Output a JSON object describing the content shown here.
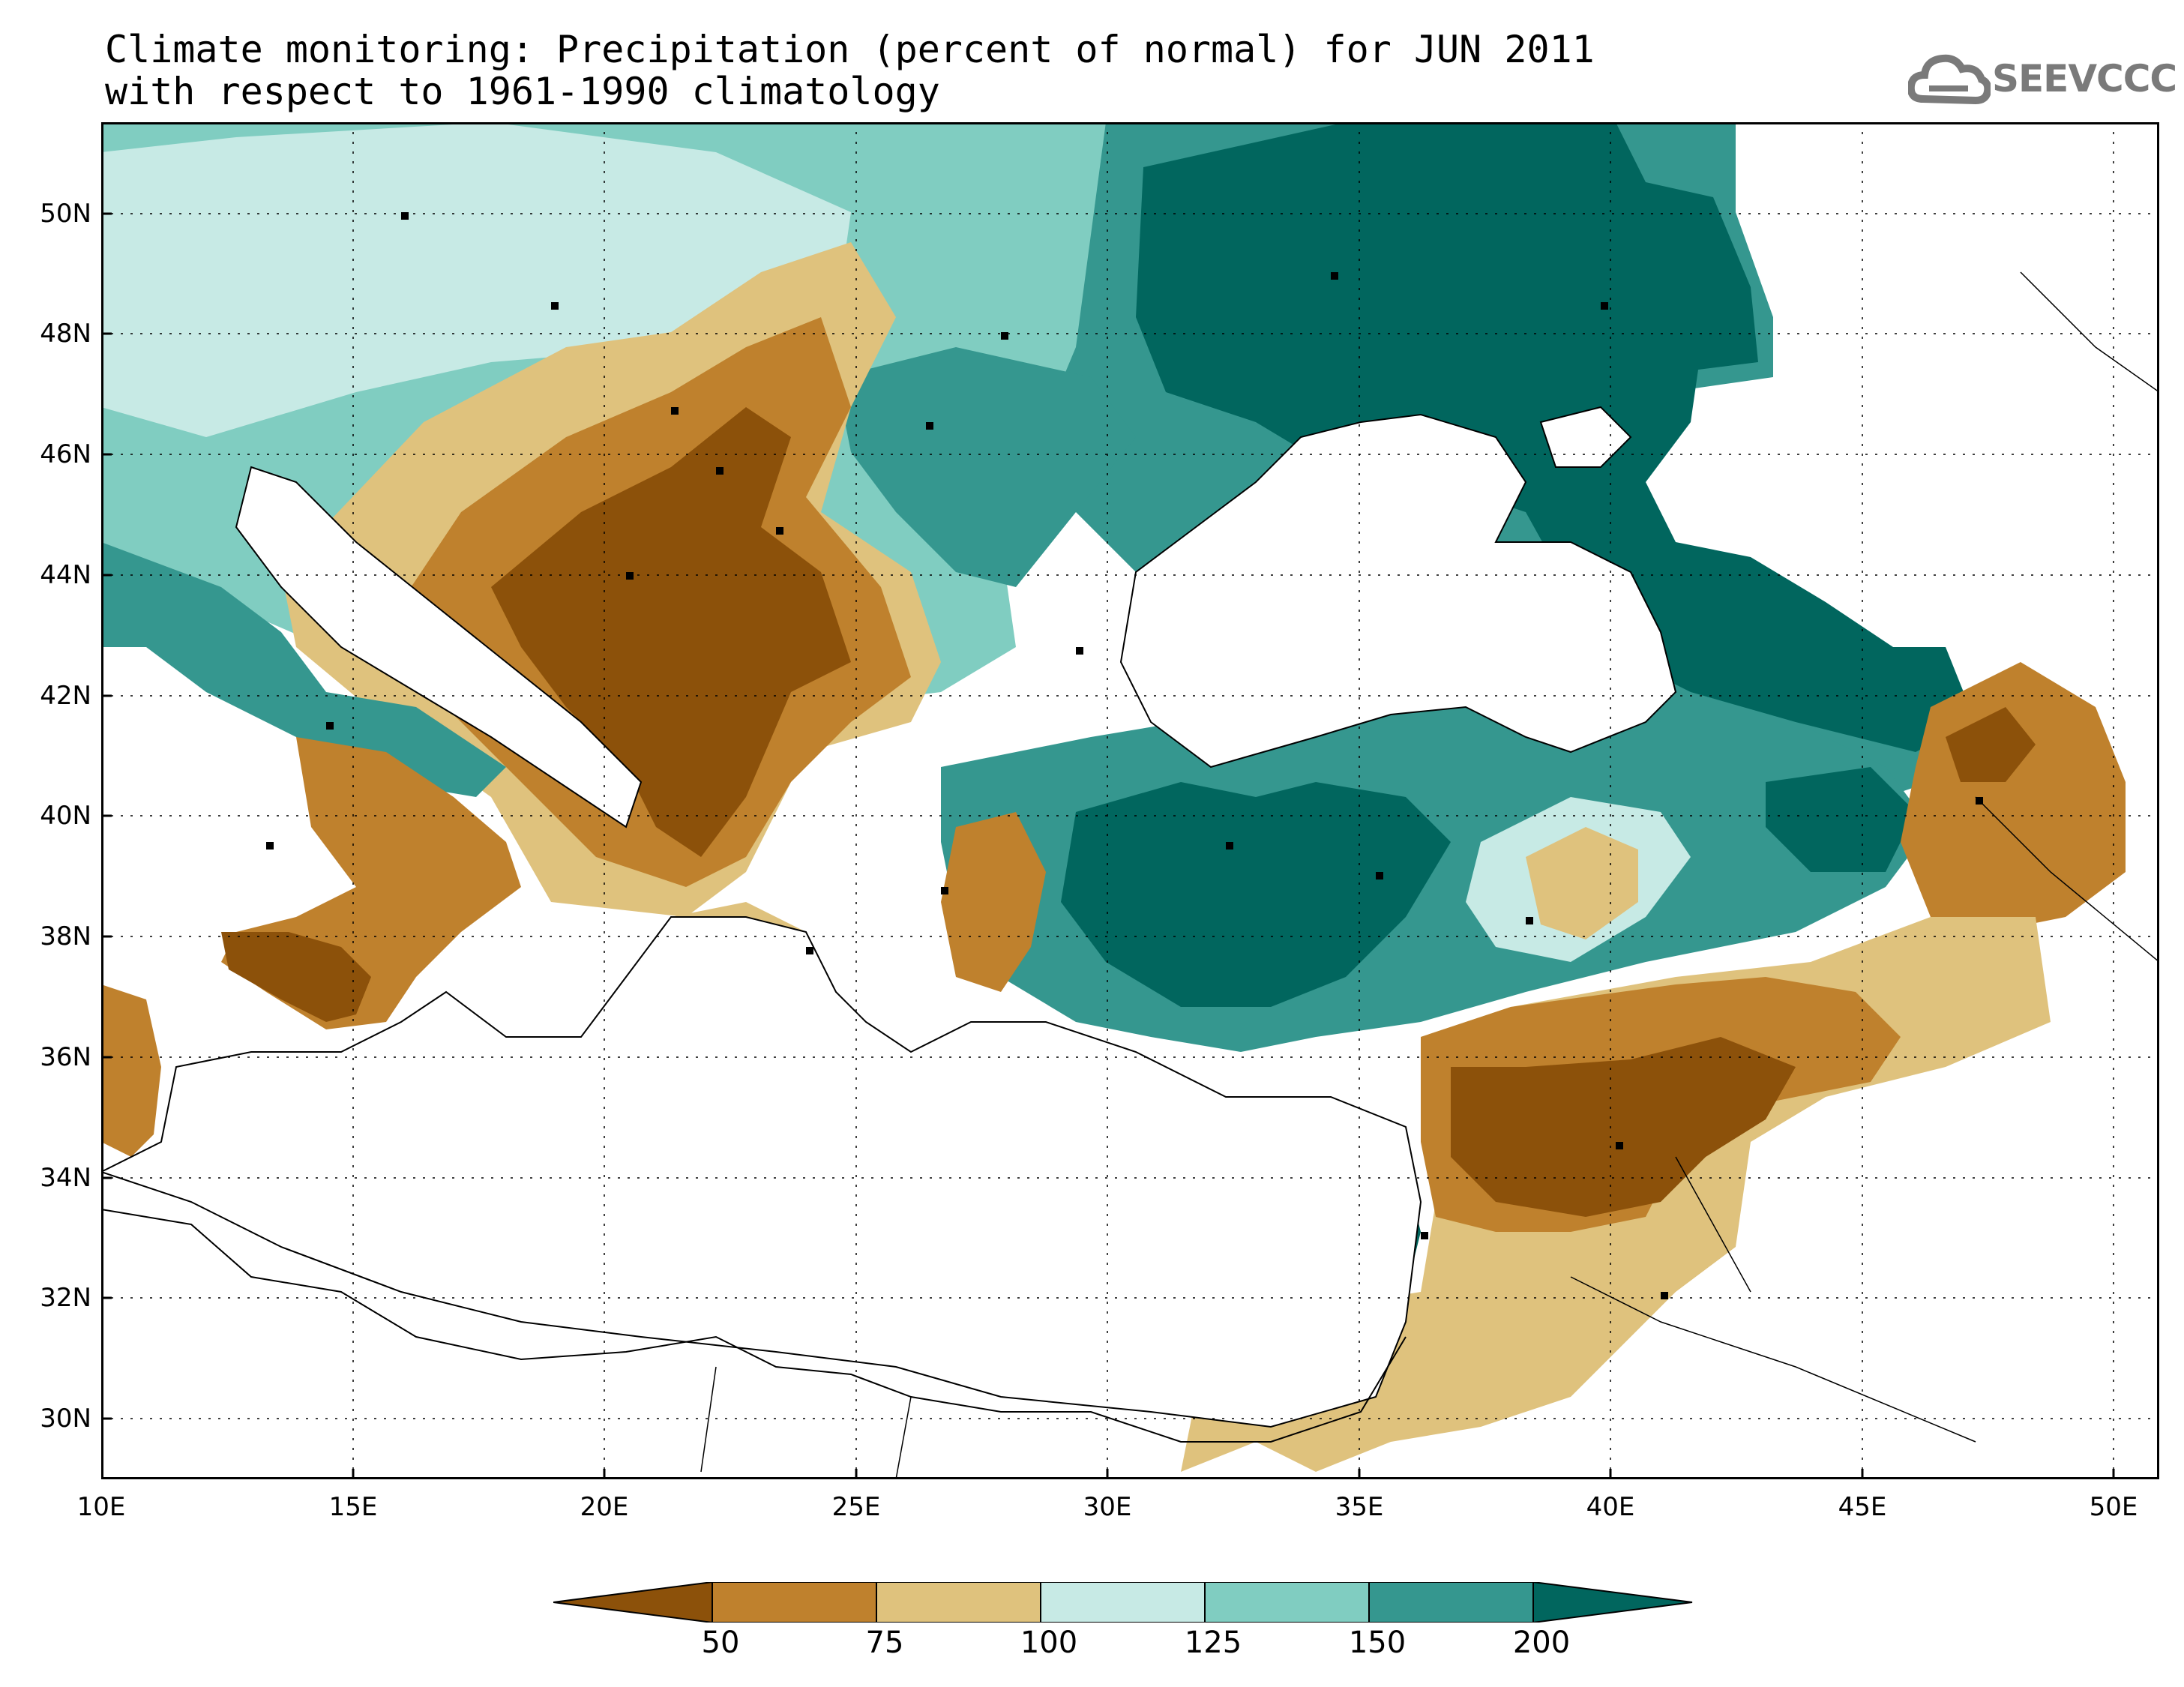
{
  "title": {
    "line1": "Climate monitoring: Precipitation (percent of normal) for JUN 2011",
    "line2": "with respect to 1961-1990 climatology"
  },
  "logo": {
    "text": "SEEVCCC",
    "icon": "cloud-icon",
    "color": "#7a7a7a"
  },
  "axes": {
    "y_ticks": [
      "50N",
      "48N",
      "46N",
      "44N",
      "42N",
      "40N",
      "38N",
      "36N",
      "34N",
      "32N",
      "30N"
    ],
    "x_ticks": [
      "10E",
      "15E",
      "20E",
      "25E",
      "30E",
      "35E",
      "40E",
      "45E",
      "50E"
    ]
  },
  "colorbar": {
    "labels": [
      "50",
      "75",
      "100",
      "125",
      "150",
      "200"
    ],
    "colors": [
      "#8c510a",
      "#bf812d",
      "#dfc27d",
      "#c7eae5",
      "#80cdc1",
      "#35978f",
      "#01665e"
    ]
  },
  "legend_categories": [
    "<50",
    "50-75",
    "75-100",
    "100-125",
    "125-150",
    "150-200",
    ">200"
  ]
}
